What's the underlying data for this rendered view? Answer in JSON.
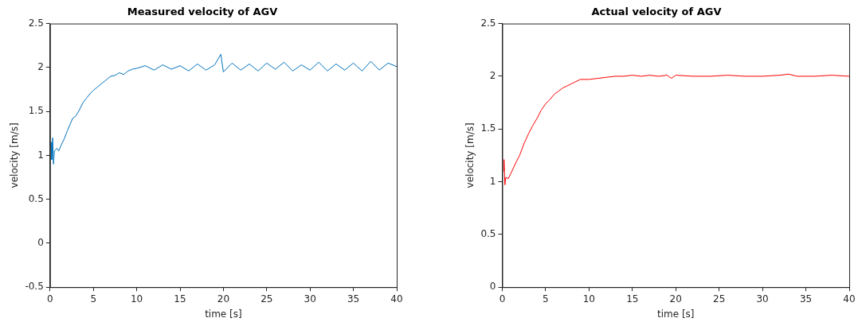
{
  "chart_data": [
    {
      "type": "line",
      "title": "Measured velocity of AGV",
      "xlabel": "time [s]",
      "ylabel": "velocity [m/s]",
      "x": [
        0.12,
        0.2,
        0.3,
        0.4,
        0.5,
        0.8,
        1,
        1.3,
        1.6,
        2,
        2.3,
        2.6,
        3,
        3.4,
        3.8,
        4.2,
        4.6,
        5,
        5.5,
        6,
        6.5,
        7,
        7.5,
        8,
        8.5,
        9,
        9.5,
        10,
        11,
        12,
        13,
        14,
        15,
        16,
        17,
        18,
        19,
        19.7,
        20,
        21,
        22,
        23,
        24,
        25,
        26,
        27,
        28,
        29,
        30,
        31,
        32,
        33,
        34,
        35,
        36,
        37,
        38,
        39,
        40
      ],
      "series": [
        {
          "color": "#0072bd",
          "values": [
            1.15,
            0.95,
            1.2,
            0.9,
            1.05,
            1.08,
            1.05,
            1.12,
            1.18,
            1.28,
            1.35,
            1.42,
            1.45,
            1.52,
            1.6,
            1.65,
            1.7,
            1.74,
            1.78,
            1.82,
            1.86,
            1.9,
            1.91,
            1.94,
            1.92,
            1.96,
            1.98,
            1.99,
            2.02,
            1.97,
            2.03,
            1.98,
            2.02,
            1.96,
            2.04,
            1.97,
            2.03,
            2.15,
            1.95,
            2.05,
            1.97,
            2.04,
            1.96,
            2.05,
            1.98,
            2.06,
            1.96,
            2.03,
            1.97,
            2.06,
            1.96,
            2.04,
            1.97,
            2.05,
            1.96,
            2.07,
            1.97,
            2.05,
            2.01
          ]
        }
      ],
      "xlim": [
        0,
        40
      ],
      "xticks": [
        0,
        5,
        10,
        15,
        20,
        25,
        30,
        35,
        40
      ],
      "ylim": [
        -0.5,
        2.5
      ],
      "yticks": [
        -0.5,
        0,
        0.5,
        1,
        1.5,
        2,
        2.5
      ],
      "grid": false,
      "legend": false
    },
    {
      "type": "line",
      "title": "Actual velocity of AGV",
      "xlabel": "time [s]",
      "ylabel": "velocity [m/s]",
      "x": [
        0.15,
        0.2,
        0.3,
        0.4,
        0.7,
        1,
        1.5,
        2,
        2.5,
        3,
        3.5,
        4,
        4.5,
        5,
        5.5,
        6,
        6.5,
        7,
        7.5,
        8,
        8.5,
        9,
        10,
        11,
        12,
        13,
        14,
        15,
        16,
        17,
        18,
        19,
        19.5,
        20,
        22,
        24,
        26,
        28,
        30,
        32,
        33,
        34,
        36,
        38,
        40
      ],
      "series": [
        {
          "color": "#ff0000",
          "values": [
            1.1,
            1.21,
            0.97,
            1.04,
            1.03,
            1.08,
            1.17,
            1.25,
            1.36,
            1.45,
            1.53,
            1.6,
            1.68,
            1.74,
            1.78,
            1.83,
            1.86,
            1.89,
            1.91,
            1.93,
            1.95,
            1.97,
            1.97,
            1.98,
            1.99,
            2,
            2,
            2.01,
            2,
            2.01,
            2,
            2.01,
            1.98,
            2.01,
            2,
            2,
            2.01,
            2,
            2,
            2.01,
            2.02,
            2,
            2,
            2.01,
            2
          ]
        }
      ],
      "xlim": [
        0,
        40
      ],
      "xticks": [
        0,
        5,
        10,
        15,
        20,
        25,
        30,
        35,
        40
      ],
      "ylim": [
        0,
        2.5
      ],
      "yticks": [
        0,
        0.5,
        1,
        1.5,
        2,
        2.5
      ],
      "grid": false,
      "legend": false
    }
  ]
}
